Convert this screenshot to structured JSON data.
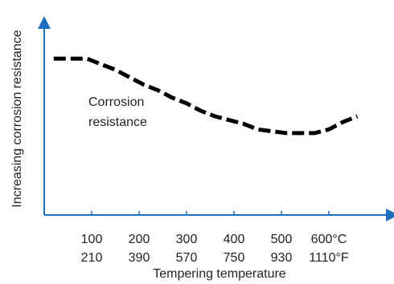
{
  "chart_data": {
    "type": "line",
    "title": "",
    "ylabel": "Increasing corrosion resistance",
    "xlabel": "Tempering temperature",
    "annotation": [
      "Corrosion",
      "resistance"
    ],
    "x_ticks_celsius": [
      "100",
      "200",
      "300",
      "400",
      "500",
      "600°C"
    ],
    "x_ticks_fahrenheit": [
      "210",
      "390",
      "570",
      "750",
      "930",
      "1110°F"
    ],
    "x_tick_values": [
      100,
      200,
      300,
      400,
      500,
      600
    ],
    "xlim": [
      0,
      700
    ],
    "ylim": [
      0,
      100
    ],
    "y_ticks": false,
    "grid": false,
    "legend": "none",
    "series": [
      {
        "points": [
          [
            20,
            84
          ],
          [
            60,
            84
          ],
          [
            90,
            84
          ],
          [
            100,
            83
          ],
          [
            120,
            81
          ],
          [
            150,
            78
          ],
          [
            180,
            74
          ],
          [
            210,
            70
          ],
          [
            240,
            67
          ],
          [
            270,
            63
          ],
          [
            300,
            60
          ],
          [
            330,
            56
          ],
          [
            360,
            53
          ],
          [
            390,
            51
          ],
          [
            420,
            49
          ],
          [
            450,
            46
          ],
          [
            480,
            45
          ],
          [
            510,
            44
          ],
          [
            540,
            44
          ],
          [
            570,
            44
          ],
          [
            600,
            46
          ],
          [
            630,
            50
          ],
          [
            660,
            53
          ]
        ]
      }
    ],
    "colors": {
      "axis": "#1f6fbf",
      "line": "#000000",
      "text": "#231f20"
    }
  }
}
